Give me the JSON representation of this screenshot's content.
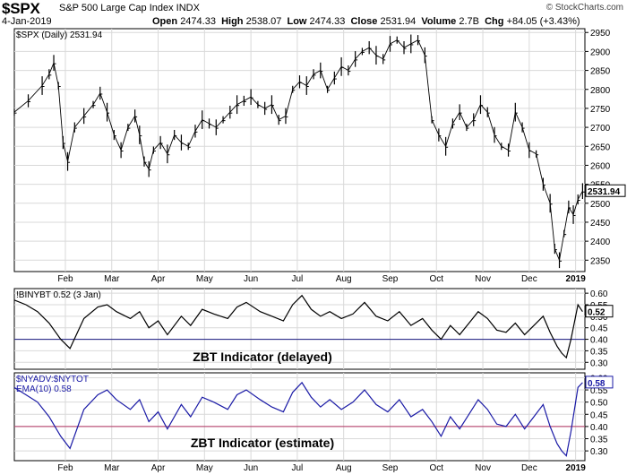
{
  "header": {
    "symbol": "$SPX",
    "name": "S&P 500 Large Cap Index INDX",
    "date": "4-Jan-2019",
    "open_label": "Open",
    "open": "2474.33",
    "high_label": "High",
    "high": "2538.07",
    "low_label": "Low",
    "low": "2474.33",
    "close_label": "Close",
    "close": "2531.94",
    "volume_label": "Volume",
    "volume": "2.7B",
    "chg_label": "Chg",
    "chg": "+84.05 (+3.43%)",
    "copyright": "© StockCharts.com"
  },
  "colors": {
    "price": "#000000",
    "indicator1": "#000000",
    "indicator2": "#1a1aa6",
    "level1": "#1a1a80",
    "level2": "#b03060",
    "grid": "#d9d9d9"
  },
  "chart_data": [
    {
      "type": "line",
      "panel": "price",
      "legend": "$SPX (Daily) 2531.94",
      "last_value_label": "2531.94",
      "ylim": [
        2320,
        2960
      ],
      "y_ticks": [
        2350,
        2400,
        2450,
        2500,
        2550,
        2600,
        2650,
        2700,
        2750,
        2800,
        2850,
        2900,
        2950
      ],
      "x_ticks": [
        "Feb",
        "Mar",
        "Apr",
        "May",
        "Jun",
        "Jul",
        "Aug",
        "Sep",
        "Oct",
        "Nov",
        "Dec",
        "2019"
      ],
      "x_tick_pos": [
        1.4,
        2.4,
        3.4,
        4.4,
        5.4,
        6.4,
        7.4,
        8.4,
        9.4,
        10.4,
        11.4,
        12.4
      ],
      "x_range": [
        0.3,
        12.6
      ],
      "x": [
        0.3,
        0.6,
        0.9,
        1.05,
        1.15,
        1.25,
        1.35,
        1.45,
        1.6,
        1.8,
        2.0,
        2.15,
        2.3,
        2.45,
        2.6,
        2.75,
        2.9,
        3.0,
        3.1,
        3.2,
        3.3,
        3.45,
        3.6,
        3.75,
        3.9,
        4.05,
        4.2,
        4.35,
        4.5,
        4.65,
        4.8,
        4.95,
        5.1,
        5.25,
        5.4,
        5.55,
        5.7,
        5.85,
        6.0,
        6.15,
        6.3,
        6.45,
        6.6,
        6.75,
        6.9,
        7.05,
        7.2,
        7.35,
        7.5,
        7.65,
        7.8,
        7.95,
        8.1,
        8.25,
        8.4,
        8.55,
        8.7,
        8.85,
        9.0,
        9.15,
        9.3,
        9.45,
        9.6,
        9.75,
        9.9,
        10.05,
        10.2,
        10.35,
        10.5,
        10.65,
        10.8,
        10.95,
        11.1,
        11.25,
        11.4,
        11.55,
        11.7,
        11.85,
        11.95,
        12.05,
        12.15,
        12.25,
        12.35,
        12.45,
        12.55
      ],
      "values": [
        2740,
        2770,
        2810,
        2840,
        2870,
        2810,
        2660,
        2610,
        2700,
        2730,
        2760,
        2790,
        2740,
        2680,
        2640,
        2700,
        2730,
        2680,
        2610,
        2590,
        2640,
        2660,
        2630,
        2680,
        2660,
        2650,
        2690,
        2720,
        2710,
        2700,
        2720,
        2740,
        2760,
        2770,
        2780,
        2760,
        2750,
        2760,
        2720,
        2730,
        2800,
        2820,
        2810,
        2840,
        2850,
        2800,
        2830,
        2860,
        2850,
        2880,
        2900,
        2910,
        2890,
        2880,
        2920,
        2930,
        2910,
        2920,
        2930,
        2890,
        2720,
        2680,
        2650,
        2710,
        2740,
        2700,
        2720,
        2760,
        2740,
        2680,
        2650,
        2640,
        2740,
        2700,
        2640,
        2630,
        2550,
        2500,
        2380,
        2350,
        2420,
        2490,
        2470,
        2510,
        2532
      ]
    },
    {
      "type": "line",
      "panel": "indicator",
      "legend": "!BINYBT 0.52 (3 Jan)",
      "last_value_label": "0.52",
      "annotation": "ZBT Indicator (delayed)",
      "ylim": [
        0.27,
        0.62
      ],
      "y_ticks": [
        0.3,
        0.35,
        0.4,
        0.45,
        0.5,
        0.55,
        0.6
      ],
      "reference_line": 0.4,
      "x_range": [
        0.3,
        12.6
      ],
      "x": [
        0.3,
        0.55,
        0.8,
        1.05,
        1.3,
        1.5,
        1.8,
        2.1,
        2.3,
        2.5,
        2.8,
        3.0,
        3.2,
        3.4,
        3.6,
        3.9,
        4.1,
        4.35,
        4.6,
        4.9,
        5.1,
        5.3,
        5.6,
        5.85,
        6.1,
        6.3,
        6.5,
        6.7,
        6.9,
        7.1,
        7.35,
        7.6,
        7.85,
        8.1,
        8.35,
        8.6,
        8.85,
        9.1,
        9.3,
        9.5,
        9.7,
        9.9,
        10.1,
        10.3,
        10.5,
        10.7,
        10.9,
        11.1,
        11.3,
        11.5,
        11.7,
        11.85,
        12.0,
        12.1,
        12.2,
        12.3,
        12.45,
        12.55
      ],
      "values": [
        0.57,
        0.55,
        0.52,
        0.47,
        0.4,
        0.36,
        0.49,
        0.54,
        0.55,
        0.52,
        0.49,
        0.52,
        0.45,
        0.48,
        0.42,
        0.5,
        0.46,
        0.53,
        0.51,
        0.49,
        0.54,
        0.56,
        0.52,
        0.5,
        0.48,
        0.55,
        0.59,
        0.53,
        0.5,
        0.52,
        0.49,
        0.51,
        0.56,
        0.5,
        0.48,
        0.52,
        0.46,
        0.49,
        0.44,
        0.4,
        0.46,
        0.42,
        0.47,
        0.52,
        0.49,
        0.44,
        0.43,
        0.47,
        0.42,
        0.46,
        0.5,
        0.43,
        0.37,
        0.34,
        0.32,
        0.4,
        0.55,
        0.52
      ]
    },
    {
      "type": "line",
      "panel": "indicator",
      "legend": [
        "$NYADV:$NYTOT",
        "EMA(10) 0.58"
      ],
      "last_value_label": "0.58",
      "annotation": "ZBT Indicator (estimate)",
      "ylim": [
        0.26,
        0.62
      ],
      "y_ticks": [
        0.3,
        0.35,
        0.4,
        0.45,
        0.5,
        0.55,
        0.6
      ],
      "reference_line": 0.4,
      "x_range": [
        0.3,
        12.6
      ],
      "x": [
        0.3,
        0.55,
        0.8,
        1.05,
        1.3,
        1.5,
        1.8,
        2.1,
        2.3,
        2.5,
        2.8,
        3.0,
        3.2,
        3.4,
        3.6,
        3.9,
        4.1,
        4.35,
        4.6,
        4.9,
        5.1,
        5.3,
        5.6,
        5.85,
        6.1,
        6.3,
        6.5,
        6.7,
        6.9,
        7.1,
        7.35,
        7.6,
        7.85,
        8.1,
        8.35,
        8.6,
        8.85,
        9.1,
        9.3,
        9.5,
        9.7,
        9.9,
        10.1,
        10.3,
        10.5,
        10.7,
        10.9,
        11.1,
        11.3,
        11.5,
        11.7,
        11.85,
        12.0,
        12.1,
        12.2,
        12.3,
        12.45,
        12.55
      ],
      "values": [
        0.56,
        0.53,
        0.5,
        0.44,
        0.36,
        0.31,
        0.47,
        0.53,
        0.55,
        0.51,
        0.47,
        0.51,
        0.42,
        0.46,
        0.39,
        0.49,
        0.44,
        0.52,
        0.5,
        0.47,
        0.53,
        0.55,
        0.51,
        0.48,
        0.46,
        0.54,
        0.58,
        0.52,
        0.48,
        0.51,
        0.47,
        0.5,
        0.55,
        0.49,
        0.46,
        0.51,
        0.44,
        0.47,
        0.42,
        0.36,
        0.44,
        0.39,
        0.45,
        0.51,
        0.47,
        0.41,
        0.4,
        0.45,
        0.39,
        0.44,
        0.49,
        0.4,
        0.33,
        0.3,
        0.28,
        0.38,
        0.56,
        0.58
      ]
    }
  ]
}
